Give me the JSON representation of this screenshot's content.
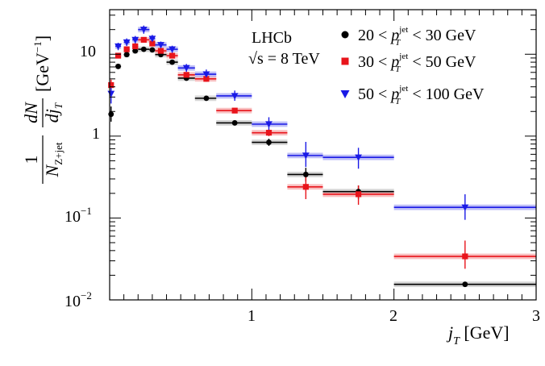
{
  "chart_data": {
    "type": "scatter",
    "xscale": "linear",
    "yscale": "log",
    "xlim": [
      0,
      3
    ],
    "ylim": [
      0.01,
      35
    ],
    "xlabel": "j_T [GeV]",
    "ylabel": "1/N_{Z+jet} dN/dj_T [GeV^-1]",
    "x_tick_labels": [
      "1",
      "2",
      "3"
    ],
    "y_tick_labels": [
      {
        "value": 0.01,
        "base": "10",
        "exp": "−2"
      },
      {
        "value": 0.1,
        "base": "10",
        "exp": "−1"
      },
      {
        "value": 1,
        "base": "1",
        "exp": ""
      },
      {
        "value": 10,
        "base": "10",
        "exp": ""
      }
    ],
    "experiment": {
      "name": "LHCb",
      "energy": "√s = 8 TeV"
    },
    "legend_placement": "top-right",
    "series": [
      {
        "name": "20 < p_T^jet < 30 GeV",
        "label_prefix": "20 < ",
        "label_var": "p",
        "label_sup": "jet",
        "label_sub": "T",
        "label_suffix": " < 30 GeV",
        "color": "#000000",
        "band_color": "#c8c8c8",
        "marker": "circle",
        "points": [
          {
            "x": 0.01,
            "xlo": 0.0,
            "xhi": 0.02,
            "y": 1.85,
            "ylo": 1.5,
            "yhi": 2.3
          },
          {
            "x": 0.06,
            "xlo": 0.04,
            "xhi": 0.08,
            "y": 7.1,
            "ylo": 6.6,
            "yhi": 7.6
          },
          {
            "x": 0.12,
            "xlo": 0.1,
            "xhi": 0.14,
            "y": 9.9,
            "ylo": 9.4,
            "yhi": 10.5
          },
          {
            "x": 0.18,
            "xlo": 0.16,
            "xhi": 0.2,
            "y": 11.0,
            "ylo": 10.4,
            "yhi": 11.6
          },
          {
            "x": 0.24,
            "xlo": 0.2,
            "xhi": 0.28,
            "y": 11.5,
            "ylo": 10.9,
            "yhi": 12.1
          },
          {
            "x": 0.3,
            "xlo": 0.28,
            "xhi": 0.32,
            "y": 11.3,
            "ylo": 10.7,
            "yhi": 11.9
          },
          {
            "x": 0.36,
            "xlo": 0.32,
            "xhi": 0.4,
            "y": 9.9,
            "ylo": 9.3,
            "yhi": 10.5
          },
          {
            "x": 0.44,
            "xlo": 0.4,
            "xhi": 0.48,
            "y": 8.0,
            "ylo": 7.5,
            "yhi": 8.5
          },
          {
            "x": 0.54,
            "xlo": 0.48,
            "xhi": 0.6,
            "y": 5.1,
            "ylo": 4.8,
            "yhi": 5.4
          },
          {
            "x": 0.68,
            "xlo": 0.6,
            "xhi": 0.75,
            "y": 2.9,
            "ylo": 2.7,
            "yhi": 3.1
          },
          {
            "x": 0.88,
            "xlo": 0.75,
            "xhi": 1.0,
            "y": 1.45,
            "ylo": 1.35,
            "yhi": 1.55
          },
          {
            "x": 1.12,
            "xlo": 1.0,
            "xhi": 1.25,
            "y": 0.84,
            "ylo": 0.76,
            "yhi": 0.93
          },
          {
            "x": 1.38,
            "xlo": 1.25,
            "xhi": 1.5,
            "y": 0.34,
            "ylo": 0.28,
            "yhi": 0.41
          },
          {
            "x": 1.75,
            "xlo": 1.5,
            "xhi": 2.0,
            "y": 0.21,
            "ylo": 0.17,
            "yhi": 0.25
          },
          {
            "x": 2.5,
            "xlo": 2.0,
            "xhi": 3.0,
            "y": 0.0155,
            "ylo": 0.0145,
            "yhi": 0.0165
          }
        ]
      },
      {
        "name": "30 < p_T^jet < 50 GeV",
        "label_prefix": "30 < ",
        "label_var": "p",
        "label_sup": "jet",
        "label_sub": "T",
        "label_suffix": " < 50 GeV",
        "color": "#e8141b",
        "band_color": "#f6a9ab",
        "marker": "square",
        "points": [
          {
            "x": 0.01,
            "xlo": 0.0,
            "xhi": 0.02,
            "y": 4.2,
            "ylo": 3.5,
            "yhi": 4.9
          },
          {
            "x": 0.06,
            "xlo": 0.04,
            "xhi": 0.08,
            "y": 9.6,
            "ylo": 8.9,
            "yhi": 10.3
          },
          {
            "x": 0.12,
            "xlo": 0.1,
            "xhi": 0.14,
            "y": 11.5,
            "ylo": 10.8,
            "yhi": 12.2
          },
          {
            "x": 0.18,
            "xlo": 0.16,
            "xhi": 0.2,
            "y": 12.5,
            "ylo": 11.8,
            "yhi": 13.2
          },
          {
            "x": 0.24,
            "xlo": 0.2,
            "xhi": 0.28,
            "y": 15.0,
            "ylo": 14.1,
            "yhi": 15.9
          },
          {
            "x": 0.3,
            "xlo": 0.28,
            "xhi": 0.32,
            "y": 13.5,
            "ylo": 12.7,
            "yhi": 14.3
          },
          {
            "x": 0.36,
            "xlo": 0.32,
            "xhi": 0.4,
            "y": 11.0,
            "ylo": 10.3,
            "yhi": 11.7
          },
          {
            "x": 0.44,
            "xlo": 0.4,
            "xhi": 0.48,
            "y": 9.6,
            "ylo": 9.0,
            "yhi": 10.2
          },
          {
            "x": 0.54,
            "xlo": 0.48,
            "xhi": 0.6,
            "y": 5.6,
            "ylo": 5.2,
            "yhi": 6.0
          },
          {
            "x": 0.68,
            "xlo": 0.6,
            "xhi": 0.75,
            "y": 5.0,
            "ylo": 4.6,
            "yhi": 5.4
          },
          {
            "x": 0.88,
            "xlo": 0.75,
            "xhi": 1.0,
            "y": 2.05,
            "ylo": 1.9,
            "yhi": 2.2
          },
          {
            "x": 1.12,
            "xlo": 1.0,
            "xhi": 1.25,
            "y": 1.1,
            "ylo": 1.0,
            "yhi": 1.2
          },
          {
            "x": 1.38,
            "xlo": 1.25,
            "xhi": 1.5,
            "y": 0.24,
            "ylo": 0.17,
            "yhi": 0.32
          },
          {
            "x": 1.75,
            "xlo": 1.5,
            "xhi": 2.0,
            "y": 0.195,
            "ylo": 0.145,
            "yhi": 0.25
          },
          {
            "x": 2.5,
            "xlo": 2.0,
            "xhi": 3.0,
            "y": 0.034,
            "ylo": 0.024,
            "yhi": 0.053
          }
        ]
      },
      {
        "name": "50 < p_T^jet < 100 GeV",
        "label_prefix": "50 < ",
        "label_var": "p",
        "label_sup": "jet",
        "label_sub": "T",
        "label_suffix": " < 100 GeV",
        "color": "#1a1ae6",
        "band_color": "#a9a9f4",
        "marker": "triangle-down",
        "points": [
          {
            "x": 0.01,
            "xlo": 0.0,
            "xhi": 0.02,
            "y": 3.3,
            "ylo": 2.5,
            "yhi": 4.3
          },
          {
            "x": 0.06,
            "xlo": 0.04,
            "xhi": 0.08,
            "y": 12.5,
            "ylo": 11.2,
            "yhi": 13.8
          },
          {
            "x": 0.12,
            "xlo": 0.1,
            "xhi": 0.14,
            "y": 14.0,
            "ylo": 12.6,
            "yhi": 15.6
          },
          {
            "x": 0.18,
            "xlo": 0.16,
            "xhi": 0.2,
            "y": 15.0,
            "ylo": 13.5,
            "yhi": 16.7
          },
          {
            "x": 0.24,
            "xlo": 0.2,
            "xhi": 0.28,
            "y": 20.0,
            "ylo": 17.8,
            "yhi": 22.4
          },
          {
            "x": 0.3,
            "xlo": 0.28,
            "xhi": 0.32,
            "y": 15.5,
            "ylo": 14.0,
            "yhi": 17.2
          },
          {
            "x": 0.36,
            "xlo": 0.32,
            "xhi": 0.4,
            "y": 13.0,
            "ylo": 11.8,
            "yhi": 14.3
          },
          {
            "x": 0.44,
            "xlo": 0.4,
            "xhi": 0.48,
            "y": 11.5,
            "ylo": 10.4,
            "yhi": 12.7
          },
          {
            "x": 0.54,
            "xlo": 0.48,
            "xhi": 0.6,
            "y": 6.8,
            "ylo": 6.1,
            "yhi": 7.6
          },
          {
            "x": 0.68,
            "xlo": 0.6,
            "xhi": 0.75,
            "y": 5.7,
            "ylo": 5.0,
            "yhi": 6.5
          },
          {
            "x": 0.88,
            "xlo": 0.75,
            "xhi": 1.0,
            "y": 3.1,
            "ylo": 2.7,
            "yhi": 3.6
          },
          {
            "x": 1.12,
            "xlo": 1.0,
            "xhi": 1.25,
            "y": 1.4,
            "ylo": 1.15,
            "yhi": 1.7
          },
          {
            "x": 1.38,
            "xlo": 1.25,
            "xhi": 1.5,
            "y": 0.58,
            "ylo": 0.42,
            "yhi": 0.85
          },
          {
            "x": 1.75,
            "xlo": 1.5,
            "xhi": 2.0,
            "y": 0.55,
            "ylo": 0.4,
            "yhi": 0.72
          },
          {
            "x": 2.5,
            "xlo": 2.0,
            "xhi": 3.0,
            "y": 0.135,
            "ylo": 0.095,
            "yhi": 0.195
          }
        ]
      }
    ]
  }
}
